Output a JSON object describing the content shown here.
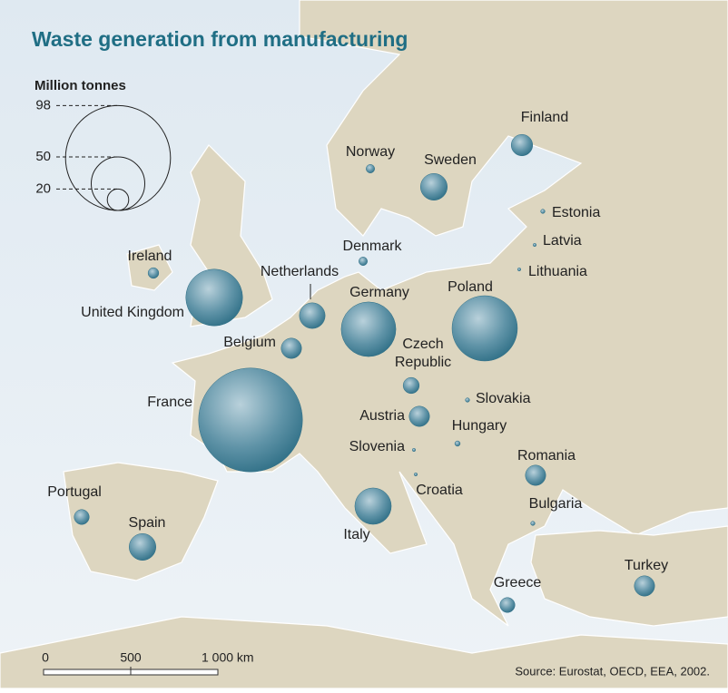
{
  "chart_data": {
    "type": "bubble-map",
    "title": "Waste generation from manufacturing",
    "legend": {
      "title": "Million tonnes",
      "values": [
        98,
        50,
        20
      ]
    },
    "categories": [
      "Finland",
      "Norway",
      "Sweden",
      "Estonia",
      "Latvia",
      "Lithuania",
      "Ireland",
      "Denmark",
      "Netherlands",
      "United Kingdom",
      "Germany",
      "Poland",
      "Belgium",
      "Czech Republic",
      "Slovakia",
      "France",
      "Austria",
      "Hungary",
      "Slovenia",
      "Croatia",
      "Romania",
      "Portugal",
      "Spain",
      "Italy",
      "Bulgaria",
      "Greece",
      "Turkey"
    ],
    "values": [
      20,
      8,
      25,
      4,
      3,
      3,
      10,
      8,
      24,
      53,
      51,
      61,
      19,
      15,
      4,
      97,
      19,
      5,
      3,
      3,
      19,
      14,
      25,
      34,
      4,
      14,
      19
    ],
    "color": "#2f6f86",
    "scale_bar": [
      "0",
      "500",
      "1 000 km"
    ],
    "source": "Source: Eurostat, OECD, EEA, 2002."
  }
}
